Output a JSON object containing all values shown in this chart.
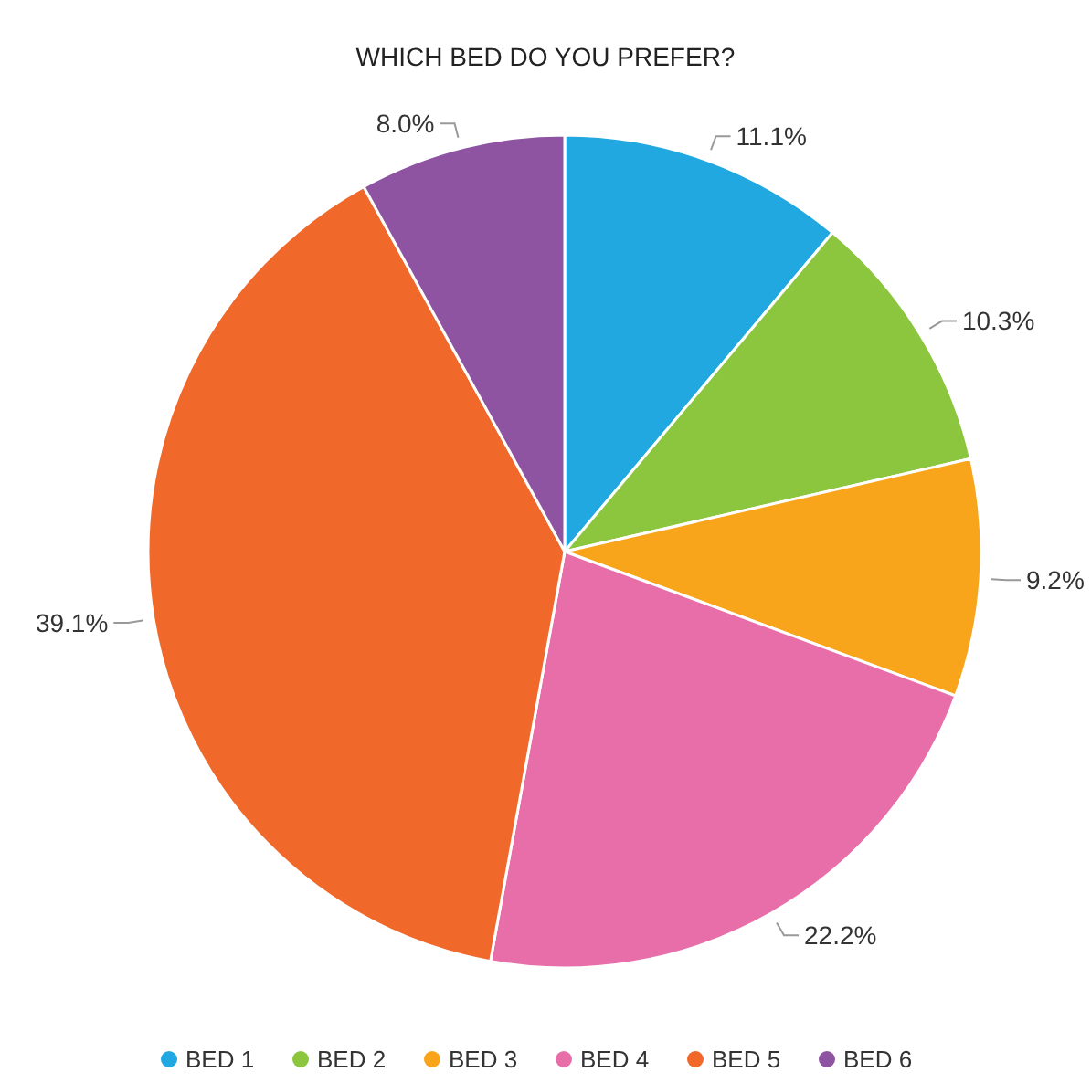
{
  "chart_data": {
    "type": "pie",
    "title": "WHICH BED DO YOU PREFER?",
    "categories": [
      "BED 1",
      "BED 2",
      "BED 3",
      "BED 4",
      "BED 5",
      "BED 6"
    ],
    "values": [
      11.1,
      10.3,
      9.2,
      22.2,
      39.1,
      8.0
    ],
    "value_labels": [
      "11.1%",
      "10.3%",
      "9.2%",
      "22.2%",
      "39.1%",
      "8.0%"
    ],
    "colors": [
      "#21a8e0",
      "#8cc63f",
      "#f9a51b",
      "#e86ea9",
      "#f0682a",
      "#8e54a1"
    ],
    "legend": "bottom"
  }
}
